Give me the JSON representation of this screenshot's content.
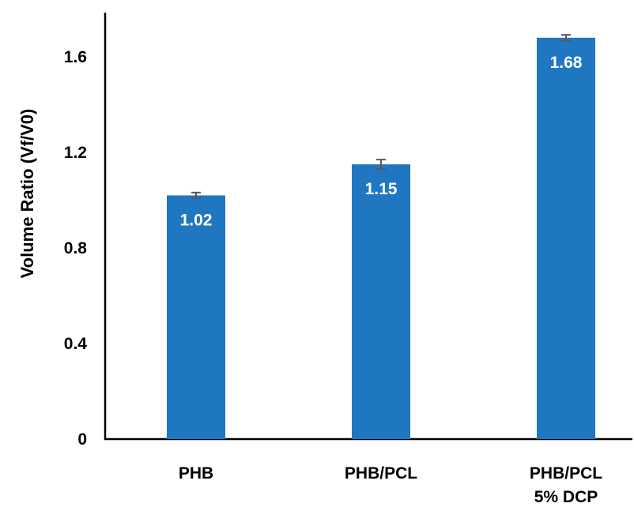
{
  "chart_data": {
    "type": "bar",
    "ylabel": "Volume Ratio (Vf/V0)",
    "ylim": [
      0,
      1.75
    ],
    "yticks": [
      "0",
      "0.4",
      "0.8",
      "1.2",
      "1.6"
    ],
    "ytick_values": [
      0,
      0.4,
      0.8,
      1.2,
      1.6
    ],
    "categories": [
      {
        "lines": [
          "PHB"
        ]
      },
      {
        "lines": [
          "PHB/PCL"
        ]
      },
      {
        "lines": [
          "PHB/PCL",
          "5% DCP"
        ]
      }
    ],
    "values": [
      1.02,
      1.15,
      1.68
    ],
    "data_labels": [
      "1.02",
      "1.15",
      "1.68"
    ],
    "errors": [
      0.012,
      0.02,
      0.012
    ],
    "bar_color": "#1f77c1",
    "error_color": "#595959",
    "grid": false,
    "legend": "none"
  }
}
